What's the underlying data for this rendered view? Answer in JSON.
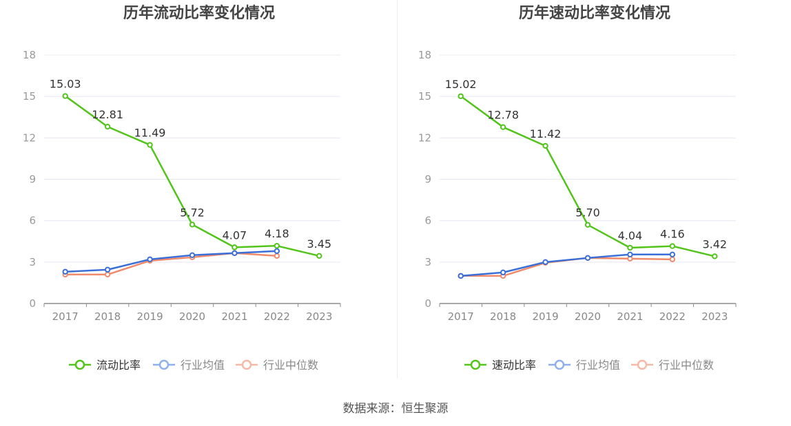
{
  "charts": [
    {
      "title": "历年流动比率变化情况",
      "legend": [
        "流动比率",
        "行业均值",
        "行业中位数"
      ]
    },
    {
      "title": "历年速动比率变化情况",
      "legend": [
        "速动比率",
        "行业均值",
        "行业中位数"
      ]
    }
  ],
  "source": "数据来源：恒生聚源",
  "colors": {
    "main": "#52c41a",
    "avg": "#3b6fd8",
    "median": "#f08a6a",
    "grid": "#e6e8f0",
    "axis": "#8c8c8c",
    "title": "#444444"
  },
  "chart_data": [
    {
      "type": "line",
      "title": "历年流动比率变化情况",
      "categories": [
        "2017",
        "2018",
        "2019",
        "2020",
        "2021",
        "2022",
        "2023"
      ],
      "ylim": [
        0,
        18
      ],
      "yticks": [
        0,
        3,
        6,
        9,
        12,
        15,
        18
      ],
      "grid": true,
      "legend_position": "bottom",
      "series": [
        {
          "name": "流动比率",
          "values": [
            15.03,
            12.81,
            11.49,
            5.72,
            4.07,
            4.18,
            3.45
          ],
          "labels": [
            "15.03",
            "12.81",
            "11.49",
            "5.72",
            "4.07",
            "4.18",
            "3.45"
          ]
        },
        {
          "name": "行业均值",
          "values": [
            2.3,
            2.45,
            3.2,
            3.5,
            3.65,
            3.8,
            null
          ]
        },
        {
          "name": "行业中位数",
          "values": [
            2.1,
            2.1,
            3.1,
            3.35,
            3.65,
            3.45,
            null
          ]
        }
      ]
    },
    {
      "type": "line",
      "title": "历年速动比率变化情况",
      "categories": [
        "2017",
        "2018",
        "2019",
        "2020",
        "2021",
        "2022",
        "2023"
      ],
      "ylim": [
        0,
        18
      ],
      "yticks": [
        0,
        3,
        6,
        9,
        12,
        15,
        18
      ],
      "grid": true,
      "legend_position": "bottom",
      "series": [
        {
          "name": "速动比率",
          "values": [
            15.02,
            12.78,
            11.42,
            5.7,
            4.04,
            4.16,
            3.42
          ],
          "labels": [
            "15.02",
            "12.78",
            "11.42",
            "5.70",
            "4.04",
            "4.16",
            "3.42"
          ]
        },
        {
          "name": "行业均值",
          "values": [
            2.0,
            2.25,
            3.0,
            3.3,
            3.55,
            3.55,
            null
          ]
        },
        {
          "name": "行业中位数",
          "values": [
            2.0,
            2.0,
            2.95,
            3.3,
            3.25,
            3.2,
            null
          ]
        }
      ]
    }
  ]
}
